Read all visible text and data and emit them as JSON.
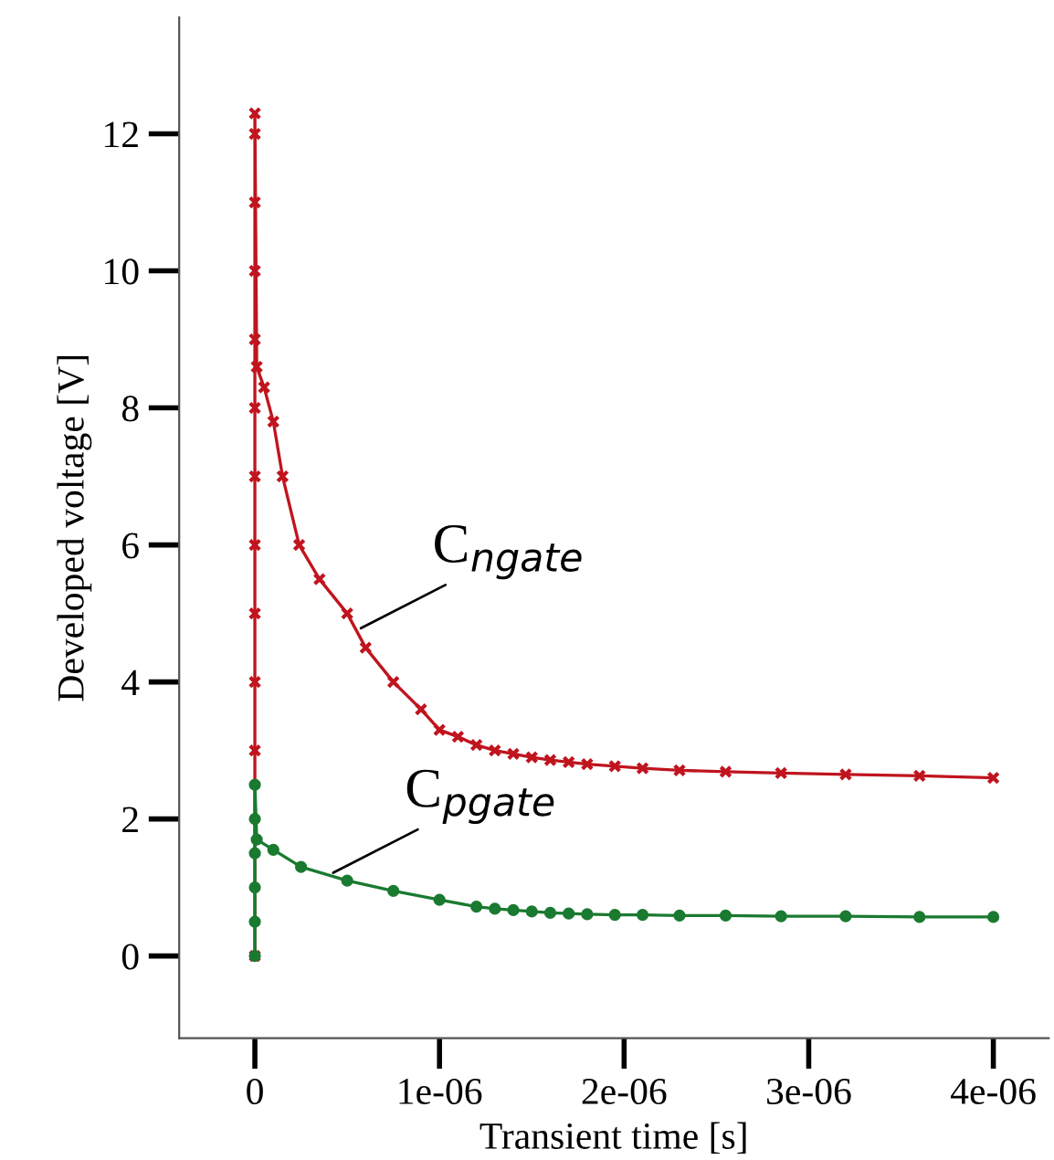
{
  "chart_data": {
    "type": "line",
    "xlabel": "Transient time [s]",
    "ylabel": "Developed voltage [V]",
    "xlim": [
      -4.1e-07,
      4.3e-06
    ],
    "ylim": [
      -1.2,
      13.7
    ],
    "xticks": [
      0,
      {
        "value": 1e-06,
        "label": "1e-06"
      },
      {
        "value": 2e-06,
        "label": "2e-06"
      },
      {
        "value": 3e-06,
        "label": "3e-06"
      },
      {
        "value": 4e-06,
        "label": "4e-06"
      }
    ],
    "yticks": [
      0,
      2,
      4,
      6,
      8,
      10,
      12
    ],
    "grid": false,
    "legend": false,
    "line_style": "solid",
    "series": [
      {
        "color": "#c0141e",
        "marker": "cross",
        "x": [
          0,
          0,
          0,
          0,
          0,
          0,
          0,
          0,
          0,
          0,
          0,
          0,
          1e-08,
          5e-08,
          1e-07,
          1.5e-07,
          2.4e-07,
          3.5e-07,
          5e-07,
          6e-07,
          7.5e-07,
          9e-07,
          1e-06,
          1.1e-06,
          1.2e-06,
          1.3e-06,
          1.4e-06,
          1.5e-06,
          1.6e-06,
          1.7e-06,
          1.8e-06,
          1.95e-06,
          2.1e-06,
          2.3e-06,
          2.55e-06,
          2.85e-06,
          3.2e-06,
          3.6e-06,
          4e-06
        ],
        "values": [
          0,
          3,
          4,
          5,
          6,
          7,
          8,
          9,
          10,
          11,
          12,
          12.3,
          8.6,
          8.3,
          7.8,
          7.0,
          6.0,
          5.5,
          5.0,
          4.5,
          4.0,
          3.6,
          3.3,
          3.2,
          3.08,
          3.0,
          2.95,
          2.9,
          2.86,
          2.83,
          2.8,
          2.77,
          2.74,
          2.71,
          2.69,
          2.67,
          2.65,
          2.63,
          2.6
        ]
      },
      {
        "color": "#1a7a30",
        "marker": "circle",
        "x": [
          0,
          0,
          0,
          0,
          0,
          0,
          1e-08,
          1e-07,
          2.5e-07,
          5e-07,
          7.5e-07,
          1e-06,
          1.2e-06,
          1.3e-06,
          1.4e-06,
          1.5e-06,
          1.6e-06,
          1.7e-06,
          1.8e-06,
          1.95e-06,
          2.1e-06,
          2.3e-06,
          2.55e-06,
          2.85e-06,
          3.2e-06,
          3.6e-06,
          4e-06
        ],
        "values": [
          0,
          0.5,
          1,
          1.5,
          2,
          2.5,
          1.7,
          1.55,
          1.3,
          1.1,
          0.95,
          0.82,
          0.72,
          0.69,
          0.67,
          0.65,
          0.63,
          0.62,
          0.61,
          0.6,
          0.6,
          0.59,
          0.59,
          0.58,
          0.58,
          0.57,
          0.57
        ]
      }
    ],
    "annotations": [
      {
        "text": "C$_{ngate}$",
        "x": 5.5e-07,
        "y": 4.75
      },
      {
        "text": "C$_{pgate}$",
        "x": 4e-07,
        "y": 1.18
      }
    ]
  }
}
